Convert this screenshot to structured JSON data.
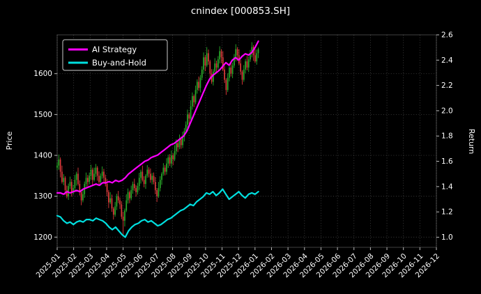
{
  "window_background": "#000000",
  "chart_data": {
    "type": "candlestick+line",
    "title": "cnindex [000853.SH]",
    "grid": true,
    "legend": {
      "position": "upper left",
      "entries": [
        "AI Strategy",
        "Buy-and-Hold"
      ]
    },
    "left_axis": {
      "label": "Price",
      "ticks": [
        1200,
        1300,
        1400,
        1500,
        1600
      ],
      "ylim": [
        1175,
        1695
      ]
    },
    "right_axis": {
      "label": "Return",
      "ticks": [
        1.0,
        1.2,
        1.4,
        1.6,
        1.8,
        2.0,
        2.2,
        2.4,
        2.6
      ],
      "ylim": [
        0.92,
        2.6
      ]
    },
    "x_axis": {
      "data_span_months": 12.2,
      "tick_labels": [
        "2025-01",
        "2025-02",
        "2025-03",
        "2025-04",
        "2025-05",
        "2025-06",
        "2025-07",
        "2025-08",
        "2025-09",
        "2025-10",
        "2025-11",
        "2025-12",
        "2026-01",
        "2026-02",
        "2026-03",
        "2026-04",
        "2026-05",
        "2026-06",
        "2026-07",
        "2026-08",
        "2026-09",
        "2026-10",
        "2026-11",
        "2026-12"
      ]
    },
    "candle_colors": {
      "up": "#2bad2b",
      "down": "#e03c3c"
    },
    "candles": {
      "open": [
        1370,
        1375,
        1390,
        1360,
        1335,
        1345,
        1315,
        1300,
        1325,
        1335,
        1310,
        1320,
        1340,
        1355,
        1330,
        1310,
        1290,
        1305,
        1330,
        1345,
        1335,
        1350,
        1365,
        1340,
        1355,
        1370,
        1350,
        1335,
        1350,
        1360,
        1345,
        1330,
        1310,
        1285,
        1295,
        1270,
        1255,
        1275,
        1300,
        1290,
        1280,
        1250,
        1240,
        1265,
        1290,
        1310,
        1295,
        1315,
        1330,
        1320,
        1310,
        1325,
        1345,
        1360,
        1340,
        1330,
        1350,
        1365,
        1355,
        1340,
        1350,
        1335,
        1315,
        1300,
        1320,
        1340,
        1355,
        1370,
        1360,
        1380,
        1395,
        1380,
        1400,
        1390,
        1410,
        1430,
        1420,
        1440,
        1425,
        1445,
        1460,
        1475,
        1500,
        1490,
        1520,
        1545,
        1530,
        1560,
        1580,
        1565,
        1590,
        1610,
        1640,
        1620,
        1650,
        1630,
        1600,
        1580,
        1605,
        1625,
        1615,
        1635,
        1655,
        1640,
        1610,
        1585,
        1560,
        1590,
        1615,
        1600,
        1620,
        1640,
        1660,
        1645,
        1625,
        1605,
        1585,
        1610,
        1630,
        1615,
        1635,
        1650,
        1665,
        1645,
        1630,
        1650
      ],
      "high": [
        1383,
        1402,
        1395,
        1375,
        1354,
        1349,
        1326,
        1331,
        1348,
        1342,
        1328,
        1352,
        1360,
        1370,
        1339,
        1314,
        1316,
        1336,
        1358,
        1352,
        1358,
        1377,
        1370,
        1370,
        1379,
        1374,
        1361,
        1356,
        1373,
        1367,
        1353,
        1342,
        1315,
        1310,
        1304,
        1274,
        1286,
        1306,
        1313,
        1297,
        1288,
        1262,
        1270,
        1305,
        1319,
        1314,
        1326,
        1336,
        1343,
        1327,
        1333,
        1357,
        1365,
        1375,
        1349,
        1354,
        1376,
        1371,
        1368,
        1357,
        1358,
        1347,
        1320,
        1335,
        1349,
        1359,
        1381,
        1376,
        1393,
        1402,
        1403,
        1412,
        1405,
        1425,
        1439,
        1434,
        1451,
        1446,
        1458,
        1467,
        1483,
        1512,
        1505,
        1535,
        1554,
        1549,
        1571,
        1586,
        1593,
        1597,
        1618,
        1652,
        1645,
        1665,
        1659,
        1634,
        1611,
        1611,
        1638,
        1632,
        1643,
        1667,
        1660,
        1655,
        1619,
        1589,
        1601,
        1621,
        1628,
        1627,
        1648,
        1672,
        1665,
        1660,
        1634,
        1609,
        1621,
        1636,
        1643,
        1642,
        1658,
        1677,
        1670,
        1660,
        1659,
        1664
      ],
      "low": [
        1364,
        1365,
        1346,
        1331,
        1327,
        1303,
        1295,
        1291,
        1318,
        1299,
        1304,
        1310,
        1326,
        1326,
        1302,
        1278,
        1285,
        1296,
        1323,
        1324,
        1329,
        1340,
        1326,
        1336,
        1347,
        1338,
        1330,
        1326,
        1343,
        1334,
        1324,
        1300,
        1271,
        1281,
        1262,
        1243,
        1250,
        1266,
        1283,
        1269,
        1244,
        1206,
        1226,
        1261,
        1282,
        1283,
        1290,
        1306,
        1313,
        1299,
        1304,
        1315,
        1331,
        1336,
        1322,
        1318,
        1345,
        1346,
        1333,
        1329,
        1329,
        1305,
        1286,
        1296,
        1312,
        1328,
        1350,
        1351,
        1353,
        1369,
        1374,
        1370,
        1376,
        1386,
        1402,
        1408,
        1415,
        1416,
        1418,
        1434,
        1454,
        1465,
        1476,
        1486,
        1512,
        1518,
        1525,
        1551,
        1558,
        1554,
        1584,
        1600,
        1606,
        1616,
        1622,
        1588,
        1575,
        1571,
        1598,
        1604,
        1609,
        1625,
        1626,
        1606,
        1577,
        1548,
        1555,
        1581,
        1593,
        1589,
        1614,
        1630,
        1631,
        1621,
        1597,
        1573,
        1580,
        1601,
        1608,
        1604,
        1629,
        1640,
        1631,
        1626,
        1622,
        1638
      ],
      "close": [
        1375,
        1390,
        1360,
        1335,
        1345,
        1315,
        1300,
        1325,
        1335,
        1310,
        1320,
        1340,
        1355,
        1330,
        1310,
        1290,
        1305,
        1330,
        1345,
        1335,
        1350,
        1365,
        1340,
        1355,
        1370,
        1350,
        1335,
        1350,
        1360,
        1345,
        1330,
        1310,
        1285,
        1295,
        1270,
        1255,
        1275,
        1300,
        1290,
        1280,
        1250,
        1240,
        1265,
        1290,
        1310,
        1295,
        1315,
        1330,
        1320,
        1310,
        1325,
        1345,
        1360,
        1340,
        1330,
        1350,
        1365,
        1355,
        1340,
        1350,
        1335,
        1315,
        1300,
        1320,
        1340,
        1355,
        1370,
        1360,
        1380,
        1395,
        1380,
        1400,
        1390,
        1410,
        1430,
        1420,
        1440,
        1425,
        1445,
        1460,
        1475,
        1500,
        1490,
        1520,
        1545,
        1530,
        1560,
        1580,
        1565,
        1590,
        1610,
        1640,
        1620,
        1650,
        1630,
        1600,
        1580,
        1605,
        1625,
        1615,
        1635,
        1655,
        1640,
        1610,
        1585,
        1560,
        1590,
        1615,
        1600,
        1620,
        1640,
        1660,
        1645,
        1625,
        1605,
        1585,
        1610,
        1630,
        1615,
        1635,
        1650,
        1665,
        1645,
        1630,
        1650,
        1660
      ]
    },
    "series": [
      {
        "name": "AI Strategy",
        "color": "#ff00ff",
        "values": [
          1.35,
          1.35,
          1.34,
          1.36,
          1.35,
          1.36,
          1.37,
          1.36,
          1.38,
          1.39,
          1.4,
          1.41,
          1.42,
          1.41,
          1.43,
          1.43,
          1.44,
          1.43,
          1.45,
          1.44,
          1.45,
          1.47,
          1.5,
          1.52,
          1.54,
          1.56,
          1.58,
          1.6,
          1.61,
          1.63,
          1.64,
          1.65,
          1.67,
          1.69,
          1.71,
          1.73,
          1.74,
          1.76,
          1.78,
          1.8,
          1.84,
          1.9,
          1.96,
          2.02,
          2.08,
          2.14,
          2.2,
          2.25,
          2.28,
          2.3,
          2.32,
          2.35,
          2.38,
          2.36,
          2.4,
          2.42,
          2.4,
          2.43,
          2.45,
          2.44,
          2.46,
          2.5,
          2.55
        ]
      },
      {
        "name": "Buy-and-Hold",
        "color": "#00e0e0",
        "values": [
          1.17,
          1.16,
          1.13,
          1.11,
          1.12,
          1.1,
          1.12,
          1.13,
          1.12,
          1.14,
          1.14,
          1.13,
          1.15,
          1.14,
          1.13,
          1.11,
          1.08,
          1.06,
          1.08,
          1.05,
          1.02,
          1.0,
          1.05,
          1.08,
          1.1,
          1.11,
          1.13,
          1.14,
          1.12,
          1.13,
          1.11,
          1.09,
          1.1,
          1.12,
          1.14,
          1.15,
          1.17,
          1.19,
          1.21,
          1.22,
          1.24,
          1.26,
          1.25,
          1.28,
          1.3,
          1.32,
          1.35,
          1.34,
          1.36,
          1.33,
          1.35,
          1.38,
          1.34,
          1.3,
          1.32,
          1.34,
          1.36,
          1.33,
          1.31,
          1.34,
          1.35,
          1.34,
          1.36
        ]
      }
    ]
  }
}
